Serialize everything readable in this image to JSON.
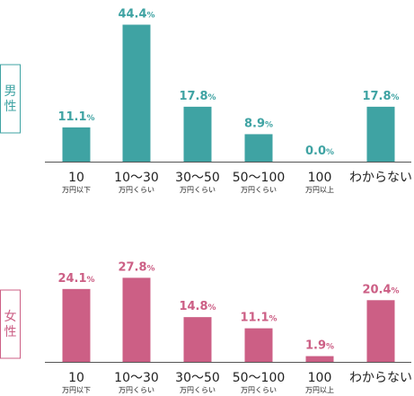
{
  "chart_data": [
    {
      "type": "bar",
      "title": "男性",
      "color": "#3fa3a3",
      "categories": [
        {
          "main": "10",
          "sub": "万円以下"
        },
        {
          "main": "10～30",
          "sub": "万円くらい"
        },
        {
          "main": "30～50",
          "sub": "万円くらい"
        },
        {
          "main": "50～100",
          "sub": "万円くらい"
        },
        {
          "main": "100",
          "sub": "万円以上"
        },
        {
          "main": "わからない",
          "sub": ""
        }
      ],
      "values": [
        11.1,
        44.4,
        17.8,
        8.9,
        0.0,
        17.8
      ],
      "value_labels": [
        "11.1",
        "44.4",
        "17.8",
        "8.9",
        "0.0",
        "17.8"
      ],
      "unit": "%",
      "ylim": [
        0,
        46
      ]
    },
    {
      "type": "bar",
      "title": "女性",
      "color": "#cc5f85",
      "categories": [
        {
          "main": "10",
          "sub": "万円以下"
        },
        {
          "main": "10～30",
          "sub": "万円くらい"
        },
        {
          "main": "30～50",
          "sub": "万円くらい"
        },
        {
          "main": "50～100",
          "sub": "万円くらい"
        },
        {
          "main": "100",
          "sub": "万円以上"
        },
        {
          "main": "わからない",
          "sub": ""
        }
      ],
      "values": [
        24.1,
        27.8,
        14.8,
        11.1,
        1.9,
        20.4
      ],
      "value_labels": [
        "24.1",
        "27.8",
        "14.8",
        "11.1",
        "1.9",
        "20.4"
      ],
      "unit": "%",
      "ylim": [
        0,
        28.8
      ]
    }
  ]
}
